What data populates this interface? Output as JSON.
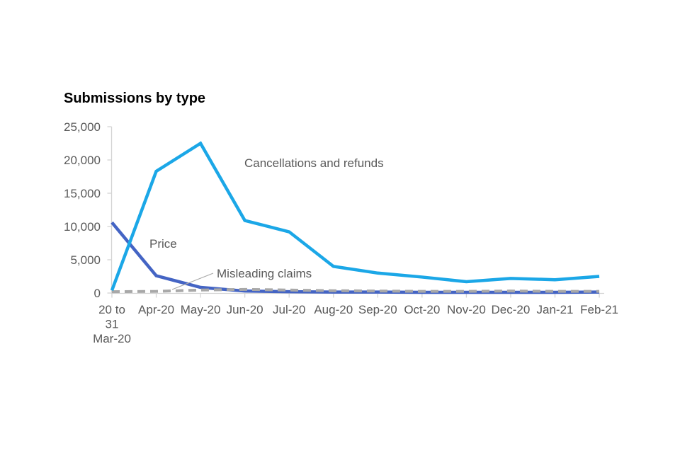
{
  "page": {
    "background_color": "#ffffff"
  },
  "chart_data": {
    "type": "line",
    "title": "Submissions by type",
    "xlabel": "",
    "ylabel": "",
    "ylim": [
      0,
      25000
    ],
    "y_ticks": [
      0,
      5000,
      10000,
      15000,
      20000,
      25000
    ],
    "y_tick_labels": [
      "0",
      "5,000",
      "10,000",
      "15,000",
      "20,000",
      "25,000"
    ],
    "grid": false,
    "legend": "inline labels placed next to lines",
    "categories": [
      "20 to 31 Mar-20",
      "Apr-20",
      "May-20",
      "Jun-20",
      "Jul-20",
      "Aug-20",
      "Sep-20",
      "Oct-20",
      "Nov-20",
      "Dec-20",
      "Jan-21",
      "Feb-21"
    ],
    "x_tick_label_lines": [
      [
        "20 to",
        "31",
        "Mar-20"
      ],
      [
        "Apr-20"
      ],
      [
        "May-20"
      ],
      [
        "Jun-20"
      ],
      [
        "Jul-20"
      ],
      [
        "Aug-20"
      ],
      [
        "Sep-20"
      ],
      [
        "Oct-20"
      ],
      [
        "Nov-20"
      ],
      [
        "Dec-20"
      ],
      [
        "Jan-21"
      ],
      [
        "Feb-21"
      ]
    ],
    "series": [
      {
        "name": "Cancellations and refunds",
        "color": "#1ba7e7",
        "line_style": "solid",
        "values": [
          400,
          18300,
          22500,
          10900,
          9200,
          4000,
          3000,
          2400,
          1700,
          2200,
          2000,
          2500
        ]
      },
      {
        "name": "Price",
        "color": "#4464c4",
        "line_style": "solid",
        "values": [
          10600,
          2600,
          850,
          300,
          200,
          150,
          150,
          100,
          100,
          100,
          100,
          150
        ]
      },
      {
        "name": "Misleading claims",
        "color": "#a8a8a8",
        "line_style": "dashed",
        "values": [
          200,
          250,
          450,
          550,
          450,
          350,
          300,
          250,
          250,
          300,
          250,
          250
        ]
      }
    ],
    "colors": {
      "axis": "#d4d4d4",
      "text": "#595959",
      "title_text": "#000000"
    }
  }
}
